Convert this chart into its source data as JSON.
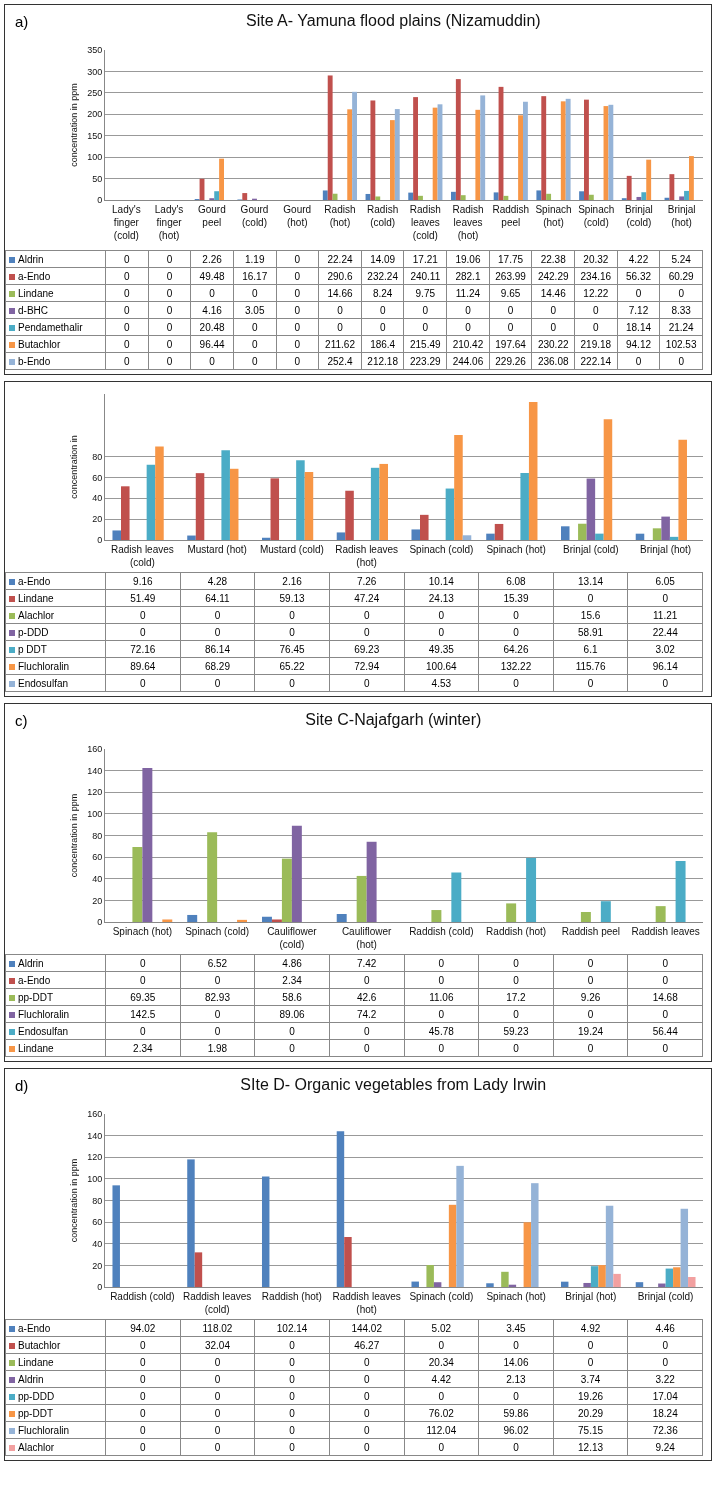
{
  "chart_data": [
    {
      "type": "bar",
      "title": "Site A- Yamuna flood plains (Nizamuddin)",
      "ylabel": "concentration in ppm",
      "annotations": [
        "a)"
      ],
      "categories": [
        "Lady's finger (cold)",
        "Lady's finger (hot)",
        "Gourd peel",
        "Gourd (cold)",
        "Gourd (hot)",
        "Radish (hot)",
        "Radish (cold)",
        "Radish leaves (cold)",
        "Radish leaves (hot)",
        "Raddish peel",
        "Spinach (hot)",
        "Spinach (cold)",
        "Brinjal (cold)",
        "Brinjal (hot)"
      ],
      "ylim": [
        0,
        350
      ],
      "yticks": [
        0,
        50,
        100,
        150,
        200,
        250,
        300,
        350
      ],
      "grid": "y",
      "legend": "bottom left",
      "data_labels": true,
      "series": [
        {
          "name": "Aldrin",
          "color": "#4f81bd",
          "values": [
            0,
            0,
            2.26,
            1.19,
            0,
            22.24,
            14.09,
            17.21,
            19.06,
            17.75,
            22.38,
            20.32,
            4.22,
            5.24
          ]
        },
        {
          "name": "a-Endo",
          "color": "#c0504d",
          "values": [
            0,
            0,
            49.48,
            16.17,
            0,
            290.6,
            232.24,
            240.11,
            282.1,
            263.99,
            242.29,
            234.16,
            56.32,
            60.29
          ]
        },
        {
          "name": "Lindane",
          "color": "#9bbb59",
          "values": [
            0,
            0,
            0,
            0,
            0,
            14.66,
            8.24,
            9.75,
            11.24,
            9.65,
            14.46,
            12.22,
            0,
            0
          ]
        },
        {
          "name": "d-BHC",
          "color": "#8064a2",
          "values": [
            0,
            0,
            4.16,
            3.05,
            0,
            0,
            0,
            0,
            0,
            0,
            0,
            0,
            7.12,
            8.33
          ]
        },
        {
          "name": "Pendamethalir",
          "color": "#4bacc6",
          "values": [
            0,
            0,
            20.48,
            0,
            0,
            0,
            0,
            0,
            0,
            0,
            0,
            0,
            18.14,
            21.24
          ]
        },
        {
          "name": "Butachlor",
          "color": "#f79646",
          "values": [
            0,
            0,
            96.44,
            0,
            0,
            211.62,
            186.4,
            215.49,
            210.42,
            197.64,
            230.22,
            219.18,
            94.12,
            102.53
          ]
        },
        {
          "name": "b-Endo",
          "color": "#95b3d7",
          "values": [
            0,
            0,
            0,
            0,
            0,
            252.4,
            212.18,
            223.29,
            244.06,
            229.26,
            236.08,
            222.14,
            0,
            0
          ]
        }
      ]
    },
    {
      "type": "bar",
      "ylabel": "concentration in",
      "categories": [
        "Radish leaves (cold)",
        "Mustard (hot)",
        "Mustard (cold)",
        "Radish leaves (hot)",
        "Spinach (cold)",
        "Spinach (hot)",
        "Brinjal (cold)",
        "Brinjal (hot)"
      ],
      "ylim": [
        0,
        140
      ],
      "yticks": [
        0,
        20,
        40,
        60,
        80
      ],
      "grid": "y",
      "legend": "bottom left",
      "data_labels": true,
      "series": [
        {
          "name": "a-Endo",
          "color": "#4f81bd",
          "values": [
            9.16,
            4.28,
            2.16,
            7.26,
            10.14,
            6.08,
            13.14,
            6.05
          ]
        },
        {
          "name": "Lindane",
          "color": "#c0504d",
          "values": [
            51.49,
            64.11,
            59.13,
            47.24,
            24.13,
            15.39,
            0,
            0
          ]
        },
        {
          "name": "Alachlor",
          "color": "#9bbb59",
          "values": [
            0,
            0,
            0,
            0,
            0,
            0,
            15.6,
            11.21
          ]
        },
        {
          "name": "p-DDD",
          "color": "#8064a2",
          "values": [
            0,
            0,
            0,
            0,
            0,
            0,
            58.91,
            22.44
          ]
        },
        {
          "name": "p DDT",
          "color": "#4bacc6",
          "values": [
            72.16,
            86.14,
            76.45,
            69.23,
            49.35,
            64.26,
            6.1,
            3.02
          ]
        },
        {
          "name": "Fluchloralin",
          "color": "#f79646",
          "values": [
            89.64,
            68.29,
            65.22,
            72.94,
            100.64,
            132.22,
            115.76,
            96.14
          ]
        },
        {
          "name": "Endosulfan",
          "color": "#95b3d7",
          "values": [
            0,
            0,
            0,
            0,
            4.53,
            0,
            0,
            0
          ]
        }
      ]
    },
    {
      "type": "bar",
      "title": "Site C-Najafgarh (winter)",
      "ylabel": "concentration in ppm",
      "annotations": [
        "c)"
      ],
      "categories": [
        "Spinach (hot)",
        "Spinach (cold)",
        "Cauliflower (cold)",
        "Cauliflower (hot)",
        "Raddish (cold)",
        "Raddish (hot)",
        "Raddish peel",
        "Raddish leaves"
      ],
      "ylim": [
        0,
        160
      ],
      "yticks": [
        0,
        20,
        40,
        60,
        80,
        100,
        120,
        140,
        160
      ],
      "grid": "y",
      "legend": "bottom left",
      "data_labels": true,
      "series": [
        {
          "name": "Aldrin",
          "color": "#4f81bd",
          "values": [
            0,
            6.52,
            4.86,
            7.42,
            0,
            0,
            0,
            0
          ]
        },
        {
          "name": "a-Endo",
          "color": "#c0504d",
          "values": [
            0,
            0,
            2.34,
            0,
            0,
            0,
            0,
            0
          ]
        },
        {
          "name": "pp-DDT",
          "color": "#9bbb59",
          "values": [
            69.35,
            82.93,
            58.6,
            42.6,
            11.06,
            17.2,
            9.26,
            14.68
          ]
        },
        {
          "name": "Fluchloralin",
          "color": "#8064a2",
          "values": [
            142.5,
            0,
            89.06,
            74.2,
            0,
            0,
            0,
            0
          ]
        },
        {
          "name": "Endosulfan",
          "color": "#4bacc6",
          "values": [
            0,
            0,
            0,
            0,
            45.78,
            59.23,
            19.24,
            56.44
          ]
        },
        {
          "name": "Lindane",
          "color": "#f79646",
          "values": [
            2.34,
            1.98,
            0,
            0,
            0,
            0,
            0,
            0
          ]
        }
      ]
    },
    {
      "type": "bar",
      "title": "SIte D- Organic vegetables from Lady Irwin",
      "ylabel": "concentration in ppm",
      "annotations": [
        "d)"
      ],
      "categories": [
        "Raddish (cold)",
        "Raddish leaves (cold)",
        "Raddish (hot)",
        "Raddish leaves (hot)",
        "Spinach (cold)",
        "Spinach (hot)",
        "Brinjal (hot)",
        "Brinjal (cold)"
      ],
      "ylim": [
        0,
        160
      ],
      "yticks": [
        0,
        20,
        40,
        60,
        80,
        100,
        120,
        140,
        160
      ],
      "grid": "y",
      "legend": "bottom left",
      "data_labels": true,
      "series": [
        {
          "name": "a-Endo",
          "color": "#4f81bd",
          "values": [
            94.02,
            118.02,
            102.14,
            144.02,
            5.02,
            3.45,
            4.92,
            4.46
          ]
        },
        {
          "name": "Butachlor",
          "color": "#c0504d",
          "values": [
            0,
            32.04,
            0,
            46.27,
            0,
            0,
            0,
            0
          ]
        },
        {
          "name": "Lindane",
          "color": "#9bbb59",
          "values": [
            0,
            0,
            0,
            0,
            20.34,
            14.06,
            0,
            0
          ]
        },
        {
          "name": "Aldrin",
          "color": "#8064a2",
          "values": [
            0,
            0,
            0,
            0,
            4.42,
            2.13,
            3.74,
            3.22
          ]
        },
        {
          "name": "pp-DDD",
          "color": "#4bacc6",
          "values": [
            0,
            0,
            0,
            0,
            0,
            0,
            19.26,
            17.04
          ]
        },
        {
          "name": "pp-DDT",
          "color": "#f79646",
          "values": [
            0,
            0,
            0,
            0,
            76.02,
            59.86,
            20.29,
            18.24
          ]
        },
        {
          "name": "Fluchloralin",
          "color": "#95b3d7",
          "values": [
            0,
            0,
            0,
            0,
            112.04,
            96.02,
            75.15,
            72.36
          ]
        },
        {
          "name": "Alachlor",
          "color": "#f2a0a0",
          "values": [
            0,
            0,
            0,
            0,
            0,
            0,
            12.13,
            9.24
          ]
        }
      ]
    }
  ]
}
